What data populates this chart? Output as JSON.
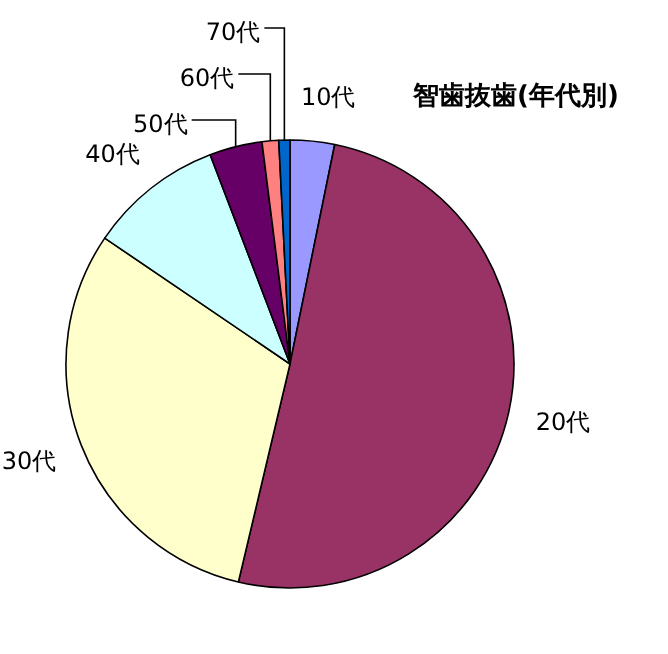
{
  "chart_data": {
    "type": "pie",
    "title": "智歯抜歯(年代別)",
    "categories": [
      "10代",
      "20代",
      "30代",
      "40代",
      "50代",
      "60代",
      "70代"
    ],
    "values": [
      3.2,
      50.5,
      30.8,
      9.7,
      3.8,
      1.2,
      0.8
    ],
    "colors": [
      "#9999ff",
      "#993366",
      "#ffffcc",
      "#ccffff",
      "#660066",
      "#ff8080",
      "#0066cc"
    ]
  }
}
